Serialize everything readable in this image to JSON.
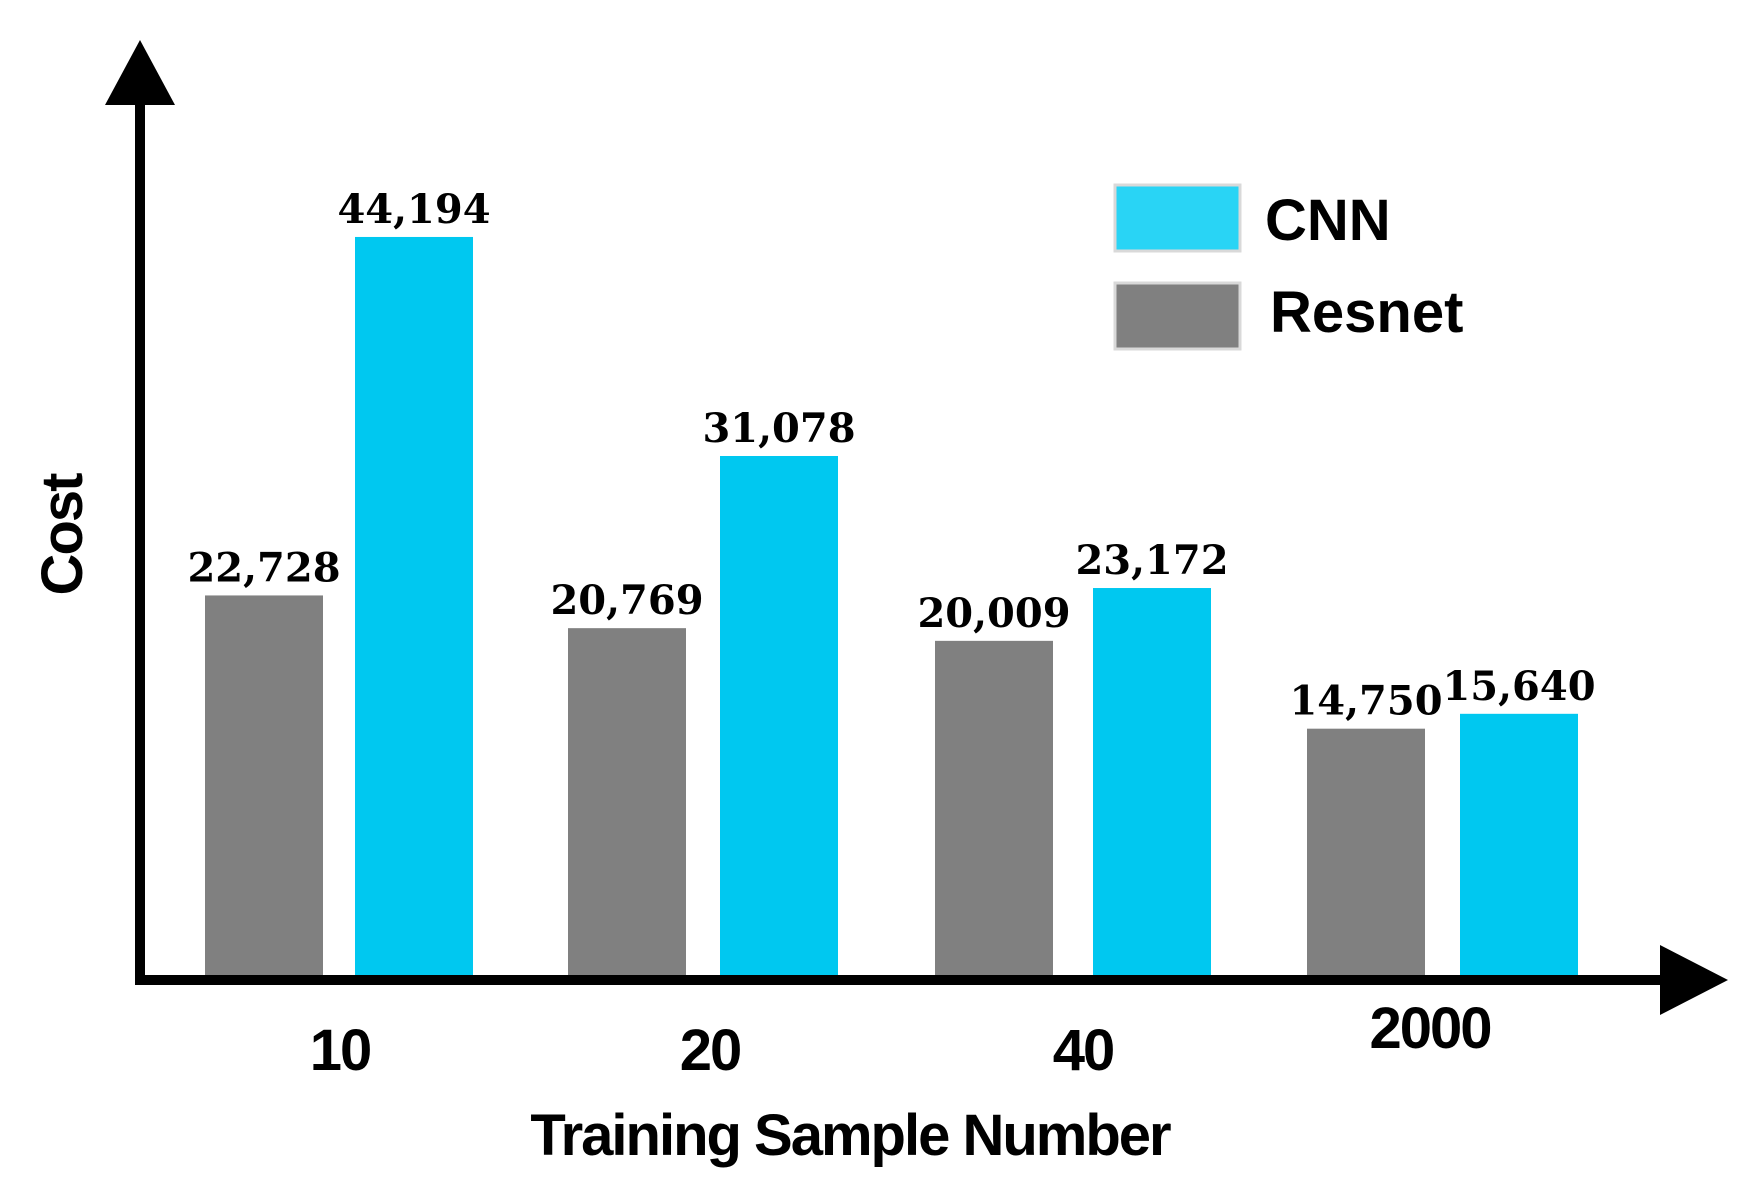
{
  "chart_data": {
    "type": "bar",
    "xlabel": "Training Sample Number",
    "ylabel": "Cost",
    "categories": [
      "10",
      "20",
      "40",
      "2000"
    ],
    "series": [
      {
        "name": "Resnet",
        "color": "#808080",
        "values": [
          22728,
          20769,
          20009,
          14750
        ],
        "labels": [
          "22,728",
          "20,769",
          "20,009",
          "14,750"
        ]
      },
      {
        "name": "CNN",
        "color": "#00C8F0",
        "values": [
          44194,
          31078,
          23172,
          15640
        ],
        "labels": [
          "44,194",
          "31,078",
          "23,172",
          "15,640"
        ]
      }
    ],
    "legend": {
      "placement": "top-right",
      "items": [
        {
          "label": "CNN",
          "color": "#29D4F5"
        },
        {
          "label": "Resnet",
          "color": "#808080"
        }
      ]
    },
    "ylim": [
      0,
      50000
    ],
    "grid": false,
    "y_ticks_shown": false
  }
}
